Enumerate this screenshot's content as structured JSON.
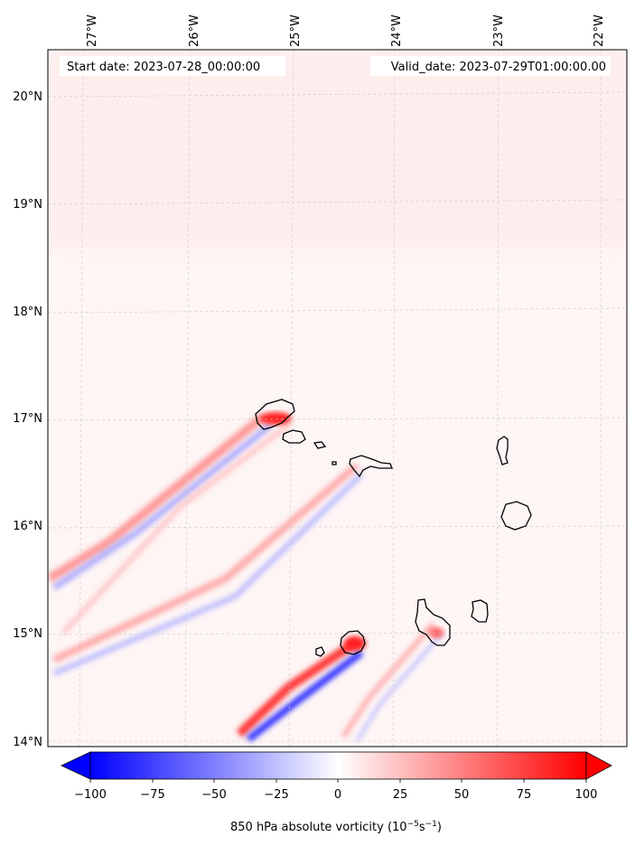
{
  "header": {
    "start_date": "Start date: 2023-07-28_00:00:00",
    "valid_date": "Valid_date: 2023-07-29T01:00:00.00"
  },
  "map": {
    "lon_labels": [
      "27°W",
      "26°W",
      "25°W",
      "24°W",
      "23°W",
      "22°W"
    ],
    "lat_labels": [
      "20°N",
      "19°N",
      "18°N",
      "17°N",
      "16°N",
      "15°N",
      "14°N"
    ],
    "extent": {
      "lon_min": -27.3,
      "lon_max": -21.8,
      "lat_min": 13.95,
      "lat_max": 20.4
    },
    "gridlines": true,
    "islands": [
      "Santo Antão",
      "São Vicente",
      "Santa Luzia",
      "São Nicolau",
      "Sal",
      "Boa Vista",
      "Maio",
      "Santiago",
      "Fogo",
      "Brava"
    ]
  },
  "colorbar": {
    "ticks": [
      "−100",
      "−75",
      "−50",
      "−25",
      "0",
      "25",
      "50",
      "75",
      "100"
    ],
    "label": "850 hPa absolute vorticity (10",
    "label_exp1": "−5",
    "label_mid": "s",
    "label_exp2": "−1",
    "label_end": ")",
    "vmin": -100,
    "vmax": 100,
    "extend": "both",
    "cmap": "bwr",
    "colors": {
      "negative": "#0000ff",
      "neutral": "#ffffff",
      "positive": "#ff0000"
    }
  }
}
